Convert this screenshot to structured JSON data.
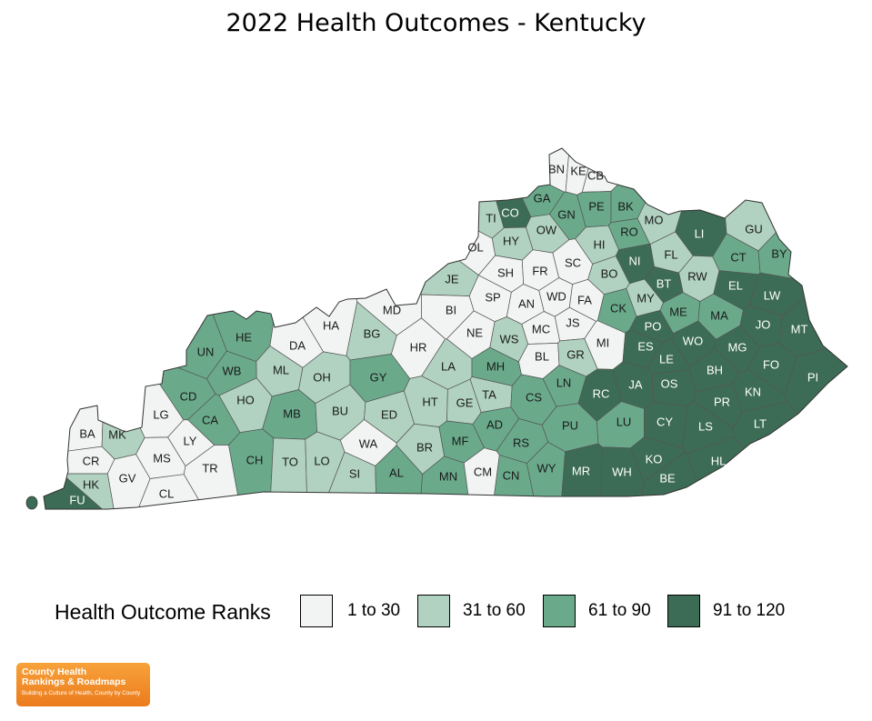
{
  "title": "2022 Health Outcomes - Kentucky",
  "legend": {
    "title": "Health Outcome Ranks",
    "classes": [
      {
        "label": "1 to 30",
        "color": "#f1f4f2"
      },
      {
        "label": "31 to 60",
        "color": "#b1d2c1"
      },
      {
        "label": "61 to 90",
        "color": "#6aaa8b"
      },
      {
        "label": "91 to 120",
        "color": "#3c6c55"
      }
    ]
  },
  "logo": {
    "line1": "County Health",
    "line2": "Rankings & Roadmaps",
    "tagline": "Building a Culture of Health, County by County"
  },
  "counties": [
    {
      "code": "BN",
      "class": 0
    },
    {
      "code": "KE",
      "class": 0
    },
    {
      "code": "CB",
      "class": 0
    },
    {
      "code": "GA",
      "class": 2
    },
    {
      "code": "CO",
      "class": 3
    },
    {
      "code": "TI",
      "class": 1
    },
    {
      "code": "GN",
      "class": 2
    },
    {
      "code": "PE",
      "class": 2
    },
    {
      "code": "BK",
      "class": 2
    },
    {
      "code": "MO",
      "class": 1
    },
    {
      "code": "LI",
      "class": 3
    },
    {
      "code": "GU",
      "class": 1
    },
    {
      "code": "OW",
      "class": 1
    },
    {
      "code": "HY",
      "class": 1
    },
    {
      "code": "OL",
      "class": 0
    },
    {
      "code": "HI",
      "class": 1
    },
    {
      "code": "RO",
      "class": 2
    },
    {
      "code": "NI",
      "class": 3
    },
    {
      "code": "FL",
      "class": 1
    },
    {
      "code": "CT",
      "class": 2
    },
    {
      "code": "BY",
      "class": 2
    },
    {
      "code": "JE",
      "class": 1
    },
    {
      "code": "SH",
      "class": 0
    },
    {
      "code": "FR",
      "class": 0
    },
    {
      "code": "SC",
      "class": 0
    },
    {
      "code": "BO",
      "class": 1
    },
    {
      "code": "RW",
      "class": 1
    },
    {
      "code": "EL",
      "class": 3
    },
    {
      "code": "LW",
      "class": 3
    },
    {
      "code": "BT",
      "class": 3
    },
    {
      "code": "SP",
      "class": 0
    },
    {
      "code": "AN",
      "class": 0
    },
    {
      "code": "WD",
      "class": 0
    },
    {
      "code": "FA",
      "class": 0
    },
    {
      "code": "MY",
      "class": 1
    },
    {
      "code": "CK",
      "class": 2
    },
    {
      "code": "MD",
      "class": 0
    },
    {
      "code": "BI",
      "class": 0
    },
    {
      "code": "HA",
      "class": 0
    },
    {
      "code": "ME",
      "class": 2
    },
    {
      "code": "MA",
      "class": 2
    },
    {
      "code": "JO",
      "class": 3
    },
    {
      "code": "MT",
      "class": 3
    },
    {
      "code": "PO",
      "class": 3
    },
    {
      "code": "JS",
      "class": 0
    },
    {
      "code": "MC",
      "class": 0
    },
    {
      "code": "NE",
      "class": 0
    },
    {
      "code": "HE",
      "class": 2
    },
    {
      "code": "DA",
      "class": 0
    },
    {
      "code": "BG",
      "class": 1
    },
    {
      "code": "HR",
      "class": 0
    },
    {
      "code": "WS",
      "class": 1
    },
    {
      "code": "BL",
      "class": 0
    },
    {
      "code": "GR",
      "class": 1
    },
    {
      "code": "MI",
      "class": 0
    },
    {
      "code": "ES",
      "class": 3
    },
    {
      "code": "WO",
      "class": 3
    },
    {
      "code": "MG",
      "class": 3
    },
    {
      "code": "UN",
      "class": 2
    },
    {
      "code": "ML",
      "class": 1
    },
    {
      "code": "WB",
      "class": 2
    },
    {
      "code": "LA",
      "class": 1
    },
    {
      "code": "MH",
      "class": 2
    },
    {
      "code": "LE",
      "class": 3
    },
    {
      "code": "BH",
      "class": 3
    },
    {
      "code": "FO",
      "class": 3
    },
    {
      "code": "PI",
      "class": 3
    },
    {
      "code": "OH",
      "class": 1
    },
    {
      "code": "GY",
      "class": 2
    },
    {
      "code": "OS",
      "class": 3
    },
    {
      "code": "JA",
      "class": 3
    },
    {
      "code": "RC",
      "class": 3
    },
    {
      "code": "LN",
      "class": 2
    },
    {
      "code": "CD",
      "class": 2
    },
    {
      "code": "HO",
      "class": 1
    },
    {
      "code": "HT",
      "class": 1
    },
    {
      "code": "GE",
      "class": 1
    },
    {
      "code": "TA",
      "class": 1
    },
    {
      "code": "CS",
      "class": 2
    },
    {
      "code": "KN",
      "class": 3
    },
    {
      "code": "PR",
      "class": 3
    },
    {
      "code": "LG",
      "class": 0
    },
    {
      "code": "CA",
      "class": 2
    },
    {
      "code": "MB",
      "class": 2
    },
    {
      "code": "BU",
      "class": 1
    },
    {
      "code": "ED",
      "class": 1
    },
    {
      "code": "AD",
      "class": 2
    },
    {
      "code": "LU",
      "class": 2
    },
    {
      "code": "CY",
      "class": 3
    },
    {
      "code": "LS",
      "class": 3
    },
    {
      "code": "LT",
      "class": 3
    },
    {
      "code": "BA",
      "class": 0
    },
    {
      "code": "MK",
      "class": 1
    },
    {
      "code": "PU",
      "class": 2
    },
    {
      "code": "WA",
      "class": 0
    },
    {
      "code": "BR",
      "class": 1
    },
    {
      "code": "MF",
      "class": 2
    },
    {
      "code": "RS",
      "class": 2
    },
    {
      "code": "LY",
      "class": 0
    },
    {
      "code": "MS",
      "class": 0
    },
    {
      "code": "CR",
      "class": 0
    },
    {
      "code": "GV",
      "class": 0
    },
    {
      "code": "TR",
      "class": 0
    },
    {
      "code": "CH",
      "class": 2
    },
    {
      "code": "TO",
      "class": 1
    },
    {
      "code": "LO",
      "class": 1
    },
    {
      "code": "SI",
      "class": 1
    },
    {
      "code": "AL",
      "class": 2
    },
    {
      "code": "MN",
      "class": 2
    },
    {
      "code": "CM",
      "class": 0
    },
    {
      "code": "CN",
      "class": 2
    },
    {
      "code": "WY",
      "class": 2
    },
    {
      "code": "MR",
      "class": 3
    },
    {
      "code": "WH",
      "class": 3
    },
    {
      "code": "KO",
      "class": 3
    },
    {
      "code": "HL",
      "class": 3
    },
    {
      "code": "BE",
      "class": 3
    },
    {
      "code": "HK",
      "class": 1
    },
    {
      "code": "CL",
      "class": 0
    },
    {
      "code": "FU",
      "class": 3
    }
  ]
}
